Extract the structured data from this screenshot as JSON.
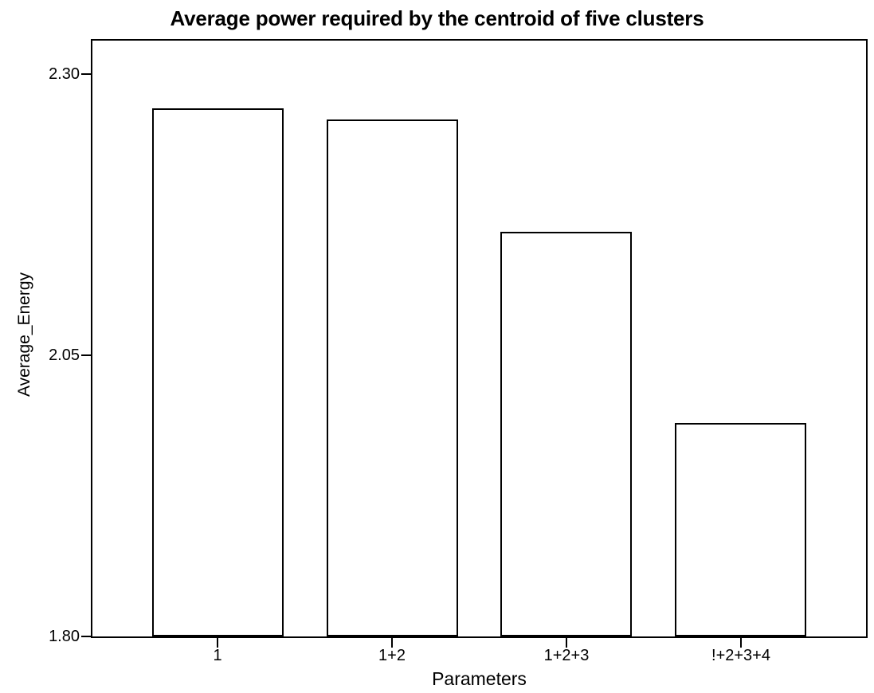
{
  "figure": {
    "background": "#ffffff",
    "text_color": "#000000"
  },
  "chart_data": {
    "type": "bar",
    "title": "Average power required by the centroid of five clusters",
    "xlabel": "Parameters",
    "ylabel": "Average_Energy",
    "categories": [
      "1",
      "1+2",
      "1+2+3",
      "!+2+3+4"
    ],
    "values": [
      2.27,
      2.26,
      2.16,
      1.99
    ],
    "ylim": [
      1.8,
      2.33
    ],
    "yticks": [
      {
        "label": "1.80",
        "value": 1.8
      },
      {
        "label": "2.05",
        "value": 2.05
      },
      {
        "label": "2.30",
        "value": 2.3
      }
    ],
    "grid": false,
    "legend": false,
    "bar_fill": "#ffffff",
    "bar_border": "#000000",
    "axis_color": "#000000",
    "frame": "full-box"
  }
}
